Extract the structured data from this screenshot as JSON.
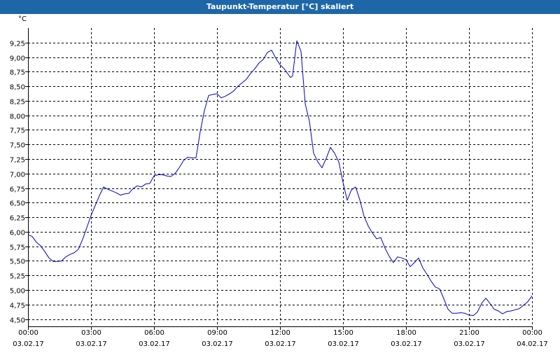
{
  "window": {
    "title": "Taupunkt-Temperatur [°C] skaliert"
  },
  "colors": {
    "titlebar": "#1d67a8",
    "line": "#0000cc",
    "grid": "#000000"
  },
  "chart_data": {
    "type": "line",
    "title": "Taupunkt-Temperatur [°C] skaliert",
    "ylabel": "°C",
    "ylim": [
      4.375,
      9.5
    ],
    "xlim": [
      0,
      24
    ],
    "grid": true,
    "grid_style": "dashed",
    "y_ticks": [
      4.5,
      4.75,
      5.0,
      5.25,
      5.5,
      5.75,
      6.0,
      6.25,
      6.5,
      6.75,
      7.0,
      7.25,
      7.5,
      7.75,
      8.0,
      8.25,
      8.5,
      8.75,
      9.0,
      9.25
    ],
    "y_tick_labels": [
      "4,50",
      "4,75",
      "5,00",
      "5,25",
      "5,50",
      "5,75",
      "6,00",
      "6,25",
      "6,50",
      "6,75",
      "7,00",
      "7,25",
      "7,50",
      "7,75",
      "8,00",
      "8,25",
      "8,50",
      "8,75",
      "9,00",
      "9,25"
    ],
    "x_ticks": [
      {
        "time": "00:00",
        "date": "03.02.17"
      },
      {
        "time": "03:00",
        "date": "03.02.17"
      },
      {
        "time": "06:00",
        "date": "03.02.17"
      },
      {
        "time": "09:00",
        "date": "03.02.17"
      },
      {
        "time": "12:00",
        "date": "03.02.17"
      },
      {
        "time": "15:00",
        "date": "03.02.17"
      },
      {
        "time": "18:00",
        "date": "03.02.17"
      },
      {
        "time": "21:00",
        "date": "03.02.17"
      },
      {
        "time": "00:00",
        "date": "04.02.17"
      }
    ],
    "series": [
      {
        "x": [
          0.0,
          0.2,
          0.4,
          0.6,
          0.8,
          1.0,
          1.2,
          1.4,
          1.6,
          1.8,
          2.0,
          2.2,
          2.4,
          2.6,
          2.8,
          3.0,
          3.2,
          3.4,
          3.6,
          3.8,
          4.0,
          4.2,
          4.4,
          4.6,
          4.8,
          5.0,
          5.2,
          5.4,
          5.6,
          5.8,
          6.0,
          6.2,
          6.4,
          6.6,
          6.8,
          7.0,
          7.2,
          7.4,
          7.6,
          7.8,
          8.0,
          8.2,
          8.4,
          8.6,
          8.8,
          9.0,
          9.2,
          9.4,
          9.6,
          9.8,
          10.0,
          10.2,
          10.4,
          10.6,
          10.8,
          11.0,
          11.2,
          11.4,
          11.6,
          11.8,
          12.0,
          12.2,
          12.4,
          12.5,
          12.6,
          12.8,
          13.0,
          13.2,
          13.4,
          13.6,
          13.8,
          14.0,
          14.2,
          14.4,
          14.6,
          14.8,
          15.0,
          15.2,
          15.4,
          15.6,
          15.8,
          16.0,
          16.2,
          16.4,
          16.6,
          16.8,
          17.0,
          17.2,
          17.4,
          17.6,
          17.8,
          18.0,
          18.2,
          18.4,
          18.6,
          18.8,
          19.0,
          19.2,
          19.4,
          19.6,
          19.8,
          20.0,
          20.2,
          20.4,
          20.6,
          20.8,
          21.0,
          21.2,
          21.4,
          21.6,
          21.8,
          22.0,
          22.2,
          22.4,
          22.6,
          22.8,
          23.0,
          23.2,
          23.4,
          23.6,
          23.8,
          24.0
        ],
        "values": [
          5.95,
          5.92,
          5.82,
          5.76,
          5.66,
          5.55,
          5.49,
          5.49,
          5.5,
          5.57,
          5.61,
          5.64,
          5.7,
          5.87,
          6.07,
          6.28,
          6.45,
          6.62,
          6.77,
          6.73,
          6.7,
          6.67,
          6.63,
          6.65,
          6.66,
          6.74,
          6.79,
          6.77,
          6.82,
          6.83,
          6.96,
          6.98,
          6.98,
          6.96,
          6.95,
          7.0,
          7.1,
          7.22,
          7.28,
          7.27,
          7.27,
          7.72,
          8.08,
          8.34,
          8.36,
          8.37,
          8.3,
          8.33,
          8.37,
          8.42,
          8.5,
          8.56,
          8.62,
          8.72,
          8.8,
          8.9,
          8.96,
          9.08,
          9.12,
          8.98,
          8.87,
          8.8,
          8.7,
          8.65,
          8.68,
          9.28,
          9.1,
          8.2,
          7.9,
          7.35,
          7.2,
          7.1,
          7.26,
          7.45,
          7.35,
          7.2,
          6.85,
          6.54,
          6.72,
          6.77,
          6.55,
          6.27,
          6.1,
          5.98,
          5.88,
          5.9,
          5.72,
          5.58,
          5.47,
          5.57,
          5.55,
          5.52,
          5.4,
          5.47,
          5.55,
          5.38,
          5.27,
          5.15,
          5.05,
          5.02,
          4.85,
          4.67,
          4.6,
          4.6,
          4.61,
          4.6,
          4.57,
          4.56,
          4.62,
          4.77,
          4.86,
          4.77,
          4.67,
          4.64,
          4.59,
          4.63,
          4.64,
          4.66,
          4.68,
          4.74,
          4.8,
          4.9
        ]
      }
    ]
  }
}
